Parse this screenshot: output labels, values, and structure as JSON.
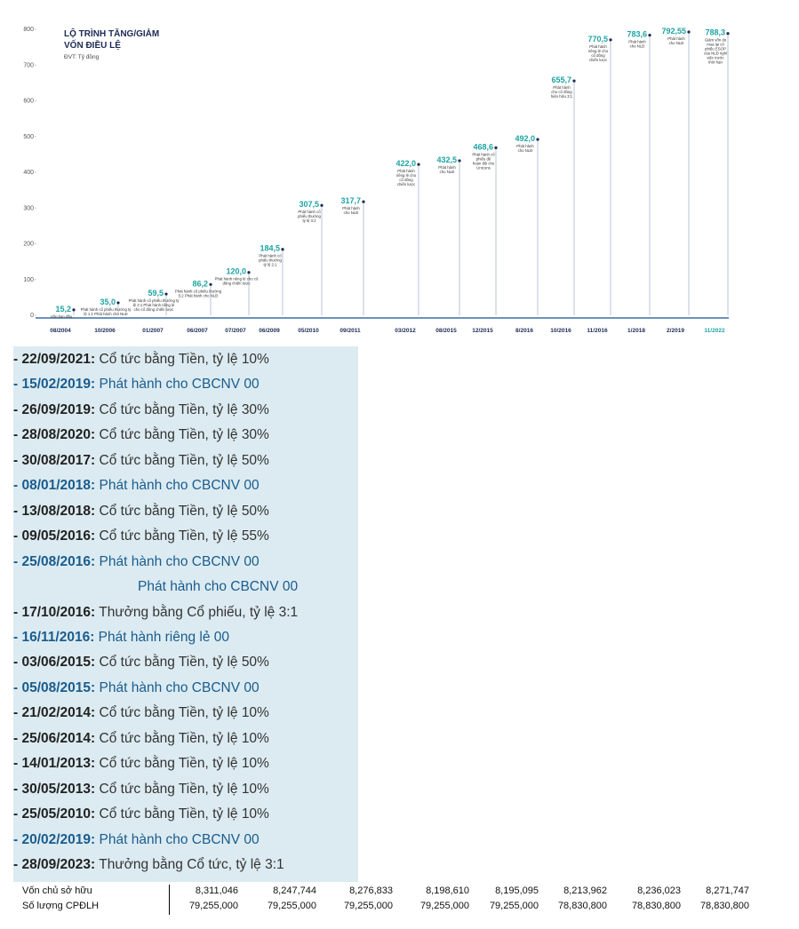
{
  "chart_data": {
    "type": "lollipop",
    "title": [
      "LỘ TRÌNH TĂNG/GIẢM",
      "VỐN ĐIỀU LỆ"
    ],
    "subtitle": "ĐVT: Tỷ đồng",
    "categories": [
      "08/2004",
      "10/2006",
      "01/2007",
      "06/2007",
      "07/2007",
      "06/2009",
      "05/2010",
      "09/2011",
      "03/2012",
      "08/2015",
      "12/2015",
      "8/2016",
      "10/2016",
      "11/2016",
      "1/2018",
      "2/2019",
      "11/2022"
    ],
    "values": [
      15.2,
      35.0,
      59.5,
      86.2,
      120.0,
      184.5,
      307.5,
      317.7,
      422.0,
      432.5,
      468.6,
      492.0,
      655.7,
      770.5,
      783.6,
      792.55,
      788.3
    ],
    "value_labels": [
      "15,2",
      "35,0",
      "59,5",
      "86,2",
      "120,0",
      "184,5",
      "307,5",
      "317,7",
      "422,0",
      "432,5",
      "468,6",
      "492,0",
      "655,7",
      "770,5",
      "783,6",
      "792,55",
      "788,3"
    ],
    "notes": [
      "Vốn ban đầu",
      "Phát hành cổ phiếu thưởng tỷ lệ 1:1 Phát hành cho NLĐ",
      "Phát hành cổ phiếu thưởng tỷ lệ 2:1 Phát hành riêng lẻ cho cổ đông chiến lược",
      "Phát hành cổ phiếu thưởng 5:2 Phát hành cho NLĐ",
      "Phát hành riêng lẻ cho cổ đông chiến lược",
      "Phát hành cổ phiếu thưởng tỷ lệ 2:1",
      "Phát hành cổ phiếu thưởng tỷ lệ 3:2",
      "Phát hành cho NLĐ",
      "Phát hành riêng lẻ cho cổ đông chiến lược",
      "Phát hành cho NLĐ",
      "Phát hành cổ phiếu để hoán đổi cho Unicons",
      "Phát hành cho NLĐ",
      "Phát hành cho cổ đông hiện hữu 3:1",
      "Phát hành riêng lẻ cho cổ đông chiến lược",
      "Phát hành cho NLĐ",
      "Phát hành cho NLĐ",
      "Giảm vốn do mua lại cổ phiếu ESOP của NLĐ nghỉ việc trước thời hạn"
    ],
    "color": "#1fa3a3",
    "line_color": "#b8c4d6",
    "dot_color": "#1b2a55",
    "ylim": [
      0,
      800
    ],
    "yticks": [
      0,
      100,
      200,
      300,
      400,
      500,
      600,
      700,
      800
    ],
    "grid": false
  },
  "events": [
    {
      "date": "- 22/09/2021:",
      "text": " Cổ tức bằng Tiền, tỷ lệ 10%",
      "color": "#333333"
    },
    {
      "date": "- 15/02/2019:",
      "text": " Phát hành cho CBCNV 00",
      "color": "#1a5c8e"
    },
    {
      "date": "- 26/09/2019:",
      "text": " Cổ tức bằng Tiền, tỷ lệ 30%",
      "color": "#333333"
    },
    {
      "date": "- 28/08/2020:",
      "text": " Cổ tức bằng Tiền, tỷ lệ 30%",
      "color": "#333333"
    },
    {
      "date": "- 30/08/2017:",
      "text": " Cổ tức bằng Tiền, tỷ lệ 50%",
      "color": "#333333"
    },
    {
      "date": "- 08/01/2018:",
      "text": " Phát hành cho CBCNV 00",
      "color": "#1a5c8e"
    },
    {
      "date": "- 13/08/2018:",
      "text": " Cổ tức bằng Tiền, tỷ lệ 50%",
      "color": "#333333"
    },
    {
      "date": "- 09/05/2016:",
      "text": " Cổ tức bằng Tiền, tỷ lệ 55%",
      "color": "#333333"
    },
    {
      "date": "- 25/08/2016:",
      "text": " Phát hành cho CBCNV 00",
      "color": "#1a5c8e"
    },
    {
      "text": "Phát hành cho CBCNV 00",
      "color": "#1a5c8e"
    },
    {
      "date": "- 17/10/2016:",
      "text": " Thưởng bằng Cổ phiếu, tỷ lệ 3:1",
      "color": "#333333"
    },
    {
      "date": "- 16/11/2016:",
      "text": " Phát hành riêng lẻ 00",
      "color": "#1a5c8e"
    },
    {
      "date": "- 03/06/2015:",
      "text": " Cổ tức bằng Tiền, tỷ lệ 50%",
      "color": "#333333"
    },
    {
      "date": "- 05/08/2015:",
      "text": " Phát hành cho CBCNV 00",
      "color": "#1a5c8e"
    },
    {
      "date": "- 21/02/2014:",
      "text": " Cổ tức bằng Tiền, tỷ lệ 10%",
      "color": "#333333"
    },
    {
      "date": "- 25/06/2014:",
      "text": " Cổ tức bằng Tiền, tỷ lệ 10%",
      "color": "#333333"
    },
    {
      "date": "- 14/01/2013:",
      "text": " Cổ tức bằng Tiền, tỷ lệ 10%",
      "color": "#333333"
    },
    {
      "date": "- 30/05/2013:",
      "text": " Cổ tức bằng Tiền, tỷ lệ 10%",
      "color": "#333333"
    },
    {
      "date": "- 25/05/2010:",
      "text": " Cổ tức bằng Tiền, tỷ lệ 10%",
      "color": "#333333"
    },
    {
      "date": "- 20/02/2019:",
      "text": " Phát hành cho CBCNV 00",
      "color": "#1a5c8e"
    },
    {
      "date": "- 28/09/2023:",
      "text": " Thưởng bằng Cổ tức, tỷ lệ 3:1",
      "color": "#333333"
    }
  ],
  "table": {
    "rows": [
      [
        "Vốn chủ sở hữu",
        "8,311,046",
        "8,247,744",
        "8,276,833",
        "8,198,610",
        "8,195,095",
        "8,213,962",
        "8,236,023",
        "8,271,747"
      ],
      [
        "Số lượng CPĐLH",
        "79,255,000",
        "79,255,000",
        "79,255,000",
        "79,255,000",
        "79,255,000",
        "78,830,800",
        "78,830,800",
        "78,830,800"
      ]
    ]
  }
}
